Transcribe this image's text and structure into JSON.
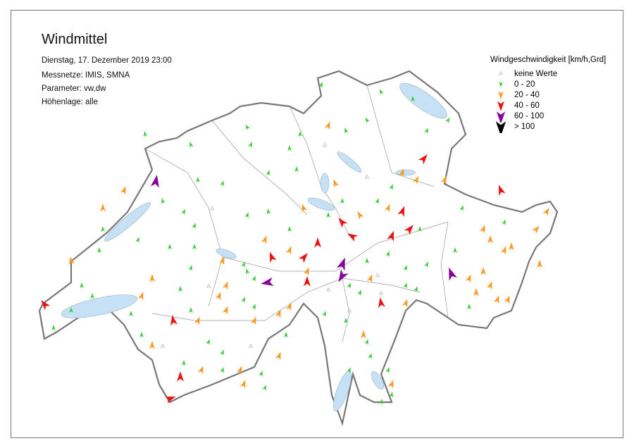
{
  "title": "Windmittel",
  "date": "Dienstag, 17. Dezember 2019 23:00",
  "networks": "Messnetze: IMIS, SMNA",
  "parameter": "Parameter: vw,dw",
  "altitude": "Höhenlage: alle",
  "legend": {
    "title": "Windgeschwindigkeit [km/h,Grd]",
    "items": [
      {
        "label": "keine Werte",
        "color": "#bbbbbb"
      },
      {
        "label": "0 - 20",
        "color": "#33cc33"
      },
      {
        "label": "20 - 40",
        "color": "#ff9922"
      },
      {
        "label": "40 - 60",
        "color": "#ee1111"
      },
      {
        "label": "60 - 100",
        "color": "#880099"
      },
      {
        "label": "> 100",
        "color": "#000000"
      }
    ]
  },
  "colors": {
    "border": "#777777",
    "lakes": "#c6e0f5",
    "cantons": "#999999"
  }
}
